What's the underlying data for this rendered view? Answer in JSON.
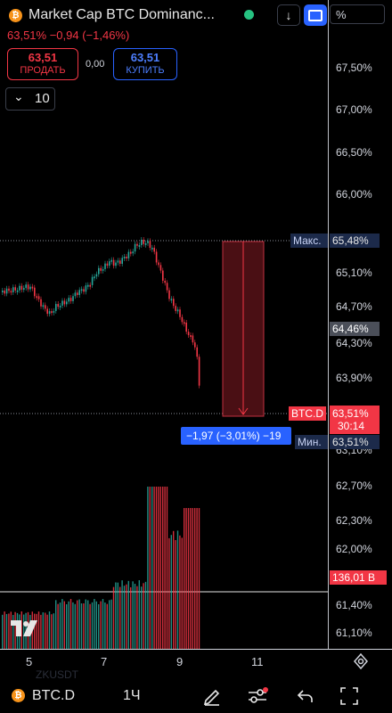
{
  "header": {
    "title": "Market Cap BTC Dominanc...",
    "price_line": "63,51%  −0,94 (−1,46%)",
    "coin_glyph": "₿",
    "download_glyph": "↓",
    "percent_label": "%"
  },
  "trade": {
    "sell_value": "63,51",
    "sell_label": "ПРОДАТЬ",
    "spread": "0,00",
    "buy_value": "63,51",
    "buy_label": "КУПИТЬ"
  },
  "interval": {
    "value": "10"
  },
  "y_axis": {
    "ticks": [
      "67,50%",
      "67,00%",
      "66,50%",
      "66,00%",
      "65,10%",
      "64,70%",
      "64,30%",
      "63,90%",
      "63,10%",
      "62,70%",
      "62,30%",
      "62,00%",
      "61,40%",
      "61,10%"
    ],
    "max_label": "Макс.",
    "max_value": "65,48%",
    "hover_value": "64,46%",
    "symbol_label": "BTC.D",
    "last_value": "63,51%",
    "countdown": "30:14",
    "min_label": "Мин.",
    "min_value": "63,51%",
    "volume_value": "136,01 B"
  },
  "measure_label": "−1,97 (−3,01%) −19",
  "x_axis": {
    "ticks": [
      "5",
      "7",
      "9",
      "11"
    ]
  },
  "watermark": "ZKUSDT",
  "toolbar": {
    "symbol": "BTC.D",
    "interval": "1Ч"
  },
  "colors": {
    "up": "#26a69a",
    "down": "#f23645",
    "accent": "#2962ff",
    "measure": "#7a1f24"
  }
}
